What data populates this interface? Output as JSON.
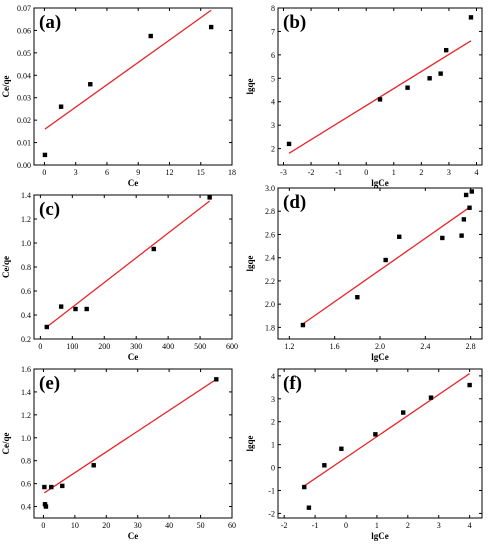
{
  "colors": {
    "fit_line": "#e8262a",
    "points": "#000000",
    "frame": "#000000"
  },
  "chart_data": [
    {
      "type": "scatter",
      "panel": "(a)",
      "xlabel": "Ce",
      "ylabel": "Ce/qe",
      "xlim": [
        -1,
        18
      ],
      "ylim": [
        0.0,
        0.07
      ],
      "xticks": [
        0,
        3,
        6,
        9,
        12,
        15,
        18
      ],
      "xtick_labels": [
        "0",
        "3",
        "6",
        "9",
        "12",
        "15",
        "18"
      ],
      "yticks": [
        0.0,
        0.01,
        0.02,
        0.03,
        0.04,
        0.05,
        0.06,
        0.07
      ],
      "ytick_labels": [
        "0.00",
        "0.01",
        "0.02",
        "0.03",
        "0.04",
        "0.05",
        "0.06",
        "0.07"
      ],
      "points": {
        "x": [
          0.05,
          1.6,
          4.4,
          10.2,
          16.0
        ],
        "y": [
          0.0045,
          0.026,
          0.036,
          0.0575,
          0.0615
        ]
      },
      "fit": {
        "x": [
          0.05,
          16.0
        ],
        "y": [
          0.016,
          0.069
        ]
      }
    },
    {
      "type": "scatter",
      "panel": "(b)",
      "xlabel": "lgCe",
      "ylabel": "lgqe",
      "xlim": [
        -3.2,
        4.2
      ],
      "ylim": [
        1.3,
        8.0
      ],
      "xticks": [
        -3,
        -2,
        -1,
        0,
        1,
        2,
        3,
        4
      ],
      "xtick_labels": [
        "-3",
        "-2",
        "-1",
        "0",
        "1",
        "2",
        "3",
        "4"
      ],
      "yticks": [
        2,
        3,
        4,
        5,
        6,
        7,
        8
      ],
      "ytick_labels": [
        "2",
        "3",
        "4",
        "5",
        "6",
        "7",
        "8"
      ],
      "points": {
        "x": [
          -2.8,
          0.5,
          1.5,
          2.3,
          2.7,
          2.9,
          3.8
        ],
        "y": [
          2.2,
          4.1,
          4.6,
          5.0,
          5.2,
          6.2,
          7.6
        ]
      },
      "fit": {
        "x": [
          -2.8,
          3.8
        ],
        "y": [
          1.8,
          6.6
        ]
      }
    },
    {
      "type": "scatter",
      "panel": "(c)",
      "xlabel": "Ce",
      "ylabel": "Ce/qe",
      "xlim": [
        -20,
        600
      ],
      "ylim": [
        0.2,
        1.4
      ],
      "xticks": [
        0,
        100,
        200,
        300,
        400,
        500,
        600
      ],
      "xtick_labels": [
        "0",
        "100",
        "200",
        "300",
        "400",
        "500",
        "600"
      ],
      "yticks": [
        0.2,
        0.4,
        0.6,
        0.8,
        1.0,
        1.2,
        1.4
      ],
      "ytick_labels": [
        "0.2",
        "0.4",
        "0.6",
        "0.8",
        "1.0",
        "1.2",
        "1.4"
      ],
      "points": {
        "x": [
          20,
          65,
          110,
          145,
          355,
          530
        ],
        "y": [
          0.3,
          0.47,
          0.45,
          0.45,
          0.95,
          1.38
        ]
      },
      "fit": {
        "x": [
          20,
          530
        ],
        "y": [
          0.3,
          1.35
        ]
      }
    },
    {
      "type": "scatter",
      "panel": "(d)",
      "xlabel": "lgCe",
      "ylabel": "lgqe",
      "xlim": [
        1.1,
        2.9
      ],
      "ylim": [
        1.7,
        3.0
      ],
      "xticks": [
        1.2,
        1.6,
        2.0,
        2.4,
        2.8
      ],
      "xtick_labels": [
        "1.2",
        "1.6",
        "2.0",
        "2.4",
        "2.8"
      ],
      "yticks": [
        1.8,
        2.0,
        2.2,
        2.4,
        2.6,
        2.8,
        3.0
      ],
      "ytick_labels": [
        "1.8",
        "2.0",
        "2.2",
        "2.4",
        "2.6",
        "2.8",
        "3.0"
      ],
      "points": {
        "x": [
          1.32,
          1.8,
          2.05,
          2.17,
          2.55,
          2.72,
          2.74,
          2.76,
          2.79,
          2.81
        ],
        "y": [
          1.82,
          2.06,
          2.38,
          2.58,
          2.57,
          2.59,
          2.73,
          2.94,
          2.83,
          2.97
        ]
      },
      "fit": {
        "x": [
          1.32,
          2.8
        ],
        "y": [
          1.83,
          2.84
        ]
      }
    },
    {
      "type": "scatter",
      "panel": "(e)",
      "xlabel": "Ce",
      "ylabel": "Ce/qe",
      "xlim": [
        -3,
        60
      ],
      "ylim": [
        0.3,
        1.6
      ],
      "xticks": [
        0,
        10,
        20,
        30,
        40,
        50,
        60
      ],
      "xtick_labels": [
        "0",
        "10",
        "20",
        "30",
        "40",
        "50",
        "60"
      ],
      "yticks": [
        0.4,
        0.6,
        0.8,
        1.0,
        1.2,
        1.4,
        1.6
      ],
      "ytick_labels": [
        "0.4",
        "0.6",
        "0.8",
        "1.0",
        "1.2",
        "1.4",
        "1.6"
      ],
      "points": {
        "x": [
          0.3,
          0.5,
          0.8,
          2.5,
          6.0,
          16.0,
          55.0
        ],
        "y": [
          0.57,
          0.42,
          0.4,
          0.57,
          0.58,
          0.76,
          1.51
        ]
      },
      "fit": {
        "x": [
          0.3,
          55.0
        ],
        "y": [
          0.52,
          1.51
        ]
      }
    },
    {
      "type": "scatter",
      "panel": "(f)",
      "xlabel": "lgCe",
      "ylabel": "lgqe",
      "xlim": [
        -2.2,
        4.4
      ],
      "ylim": [
        -2.2,
        4.3
      ],
      "xticks": [
        -2,
        -1,
        0,
        1,
        2,
        3,
        4
      ],
      "xtick_labels": [
        "-2",
        "-1",
        "0",
        "1",
        "2",
        "3",
        "4"
      ],
      "yticks": [
        -2,
        -1,
        0,
        1,
        2,
        3,
        4
      ],
      "ytick_labels": [
        "-2",
        "-1",
        "0",
        "1",
        "2",
        "3",
        "4"
      ],
      "points": {
        "x": [
          -1.35,
          -1.2,
          -0.7,
          -0.15,
          0.95,
          1.85,
          2.75,
          4.0
        ],
        "y": [
          -0.85,
          -1.75,
          0.1,
          0.82,
          1.45,
          2.4,
          3.05,
          3.6
        ]
      },
      "fit": {
        "x": [
          -1.35,
          4.0
        ],
        "y": [
          -0.8,
          4.1
        ]
      }
    }
  ]
}
